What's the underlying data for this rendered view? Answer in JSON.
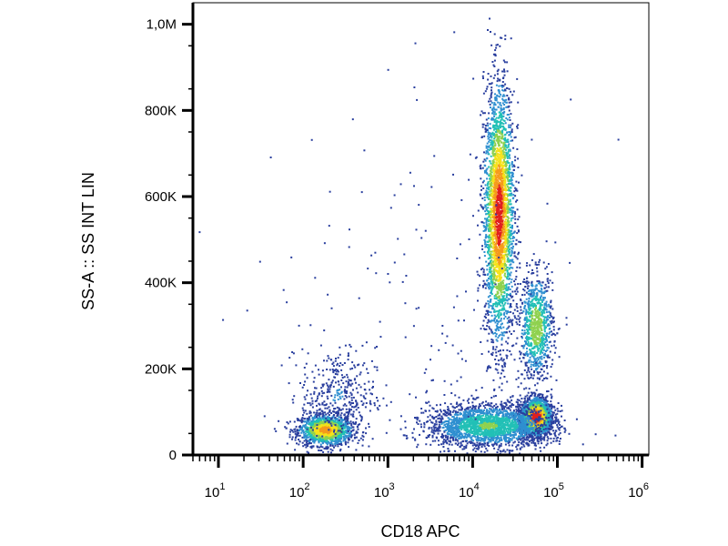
{
  "chart_data": {
    "type": "scatter",
    "subtype": "flow-cytometry-density-dot-plot",
    "title": "",
    "xlabel": "CD18 APC",
    "ylabel": "SS-A :: SS INT LIN",
    "x_scale": "log",
    "y_scale": "linear",
    "xlim": [
      5,
      1200000
    ],
    "ylim": [
      0,
      1050000
    ],
    "x_ticks": [
      {
        "value": 10,
        "base": "10",
        "exp": "1"
      },
      {
        "value": 100,
        "base": "10",
        "exp": "2"
      },
      {
        "value": 1000,
        "base": "10",
        "exp": "3"
      },
      {
        "value": 10000,
        "base": "10",
        "exp": "4"
      },
      {
        "value": 100000,
        "base": "10",
        "exp": "5"
      },
      {
        "value": 1000000,
        "base": "10",
        "exp": "6"
      }
    ],
    "y_ticks": [
      {
        "value": 0,
        "label": "0"
      },
      {
        "value": 200000,
        "label": "200K"
      },
      {
        "value": 400000,
        "label": "400K"
      },
      {
        "value": 600000,
        "label": "600K"
      },
      {
        "value": 800000,
        "label": "800K"
      },
      {
        "value": 1000000,
        "label": "1,0M"
      }
    ],
    "grid": false,
    "legend": "none",
    "color_scale": [
      "#2a3f9e",
      "#2f8fd0",
      "#22c0b6",
      "#8fd14f",
      "#f5e21a",
      "#f59a1c",
      "#e11f1f"
    ],
    "populations": [
      {
        "center_x": 180,
        "center_y": 60000,
        "spread_log_x": 0.16,
        "spread_y": 18000,
        "count": 1400,
        "peak_density": 0.8
      },
      {
        "center_x": 250,
        "center_y": 140000,
        "spread_log_x": 0.22,
        "spread_y": 55000,
        "count": 380,
        "peak_density": 0.15
      },
      {
        "center_x": 20000,
        "center_y": 560000,
        "spread_log_x": 0.09,
        "spread_y": 150000,
        "count": 2800,
        "peak_density": 0.95
      },
      {
        "center_x": 55000,
        "center_y": 300000,
        "spread_log_x": 0.1,
        "spread_y": 60000,
        "count": 900,
        "peak_density": 0.55
      },
      {
        "center_x": 55000,
        "center_y": 90000,
        "spread_log_x": 0.09,
        "spread_y": 22000,
        "count": 2000,
        "peak_density": 1.0
      },
      {
        "center_x": 15000,
        "center_y": 70000,
        "spread_log_x": 0.35,
        "spread_y": 25000,
        "count": 2200,
        "peak_density": 0.45
      },
      {
        "center_x": 3000,
        "center_y": 300000,
        "spread_log_x": 0.9,
        "spread_y": 250000,
        "count": 180,
        "peak_density": 0.05
      }
    ]
  }
}
